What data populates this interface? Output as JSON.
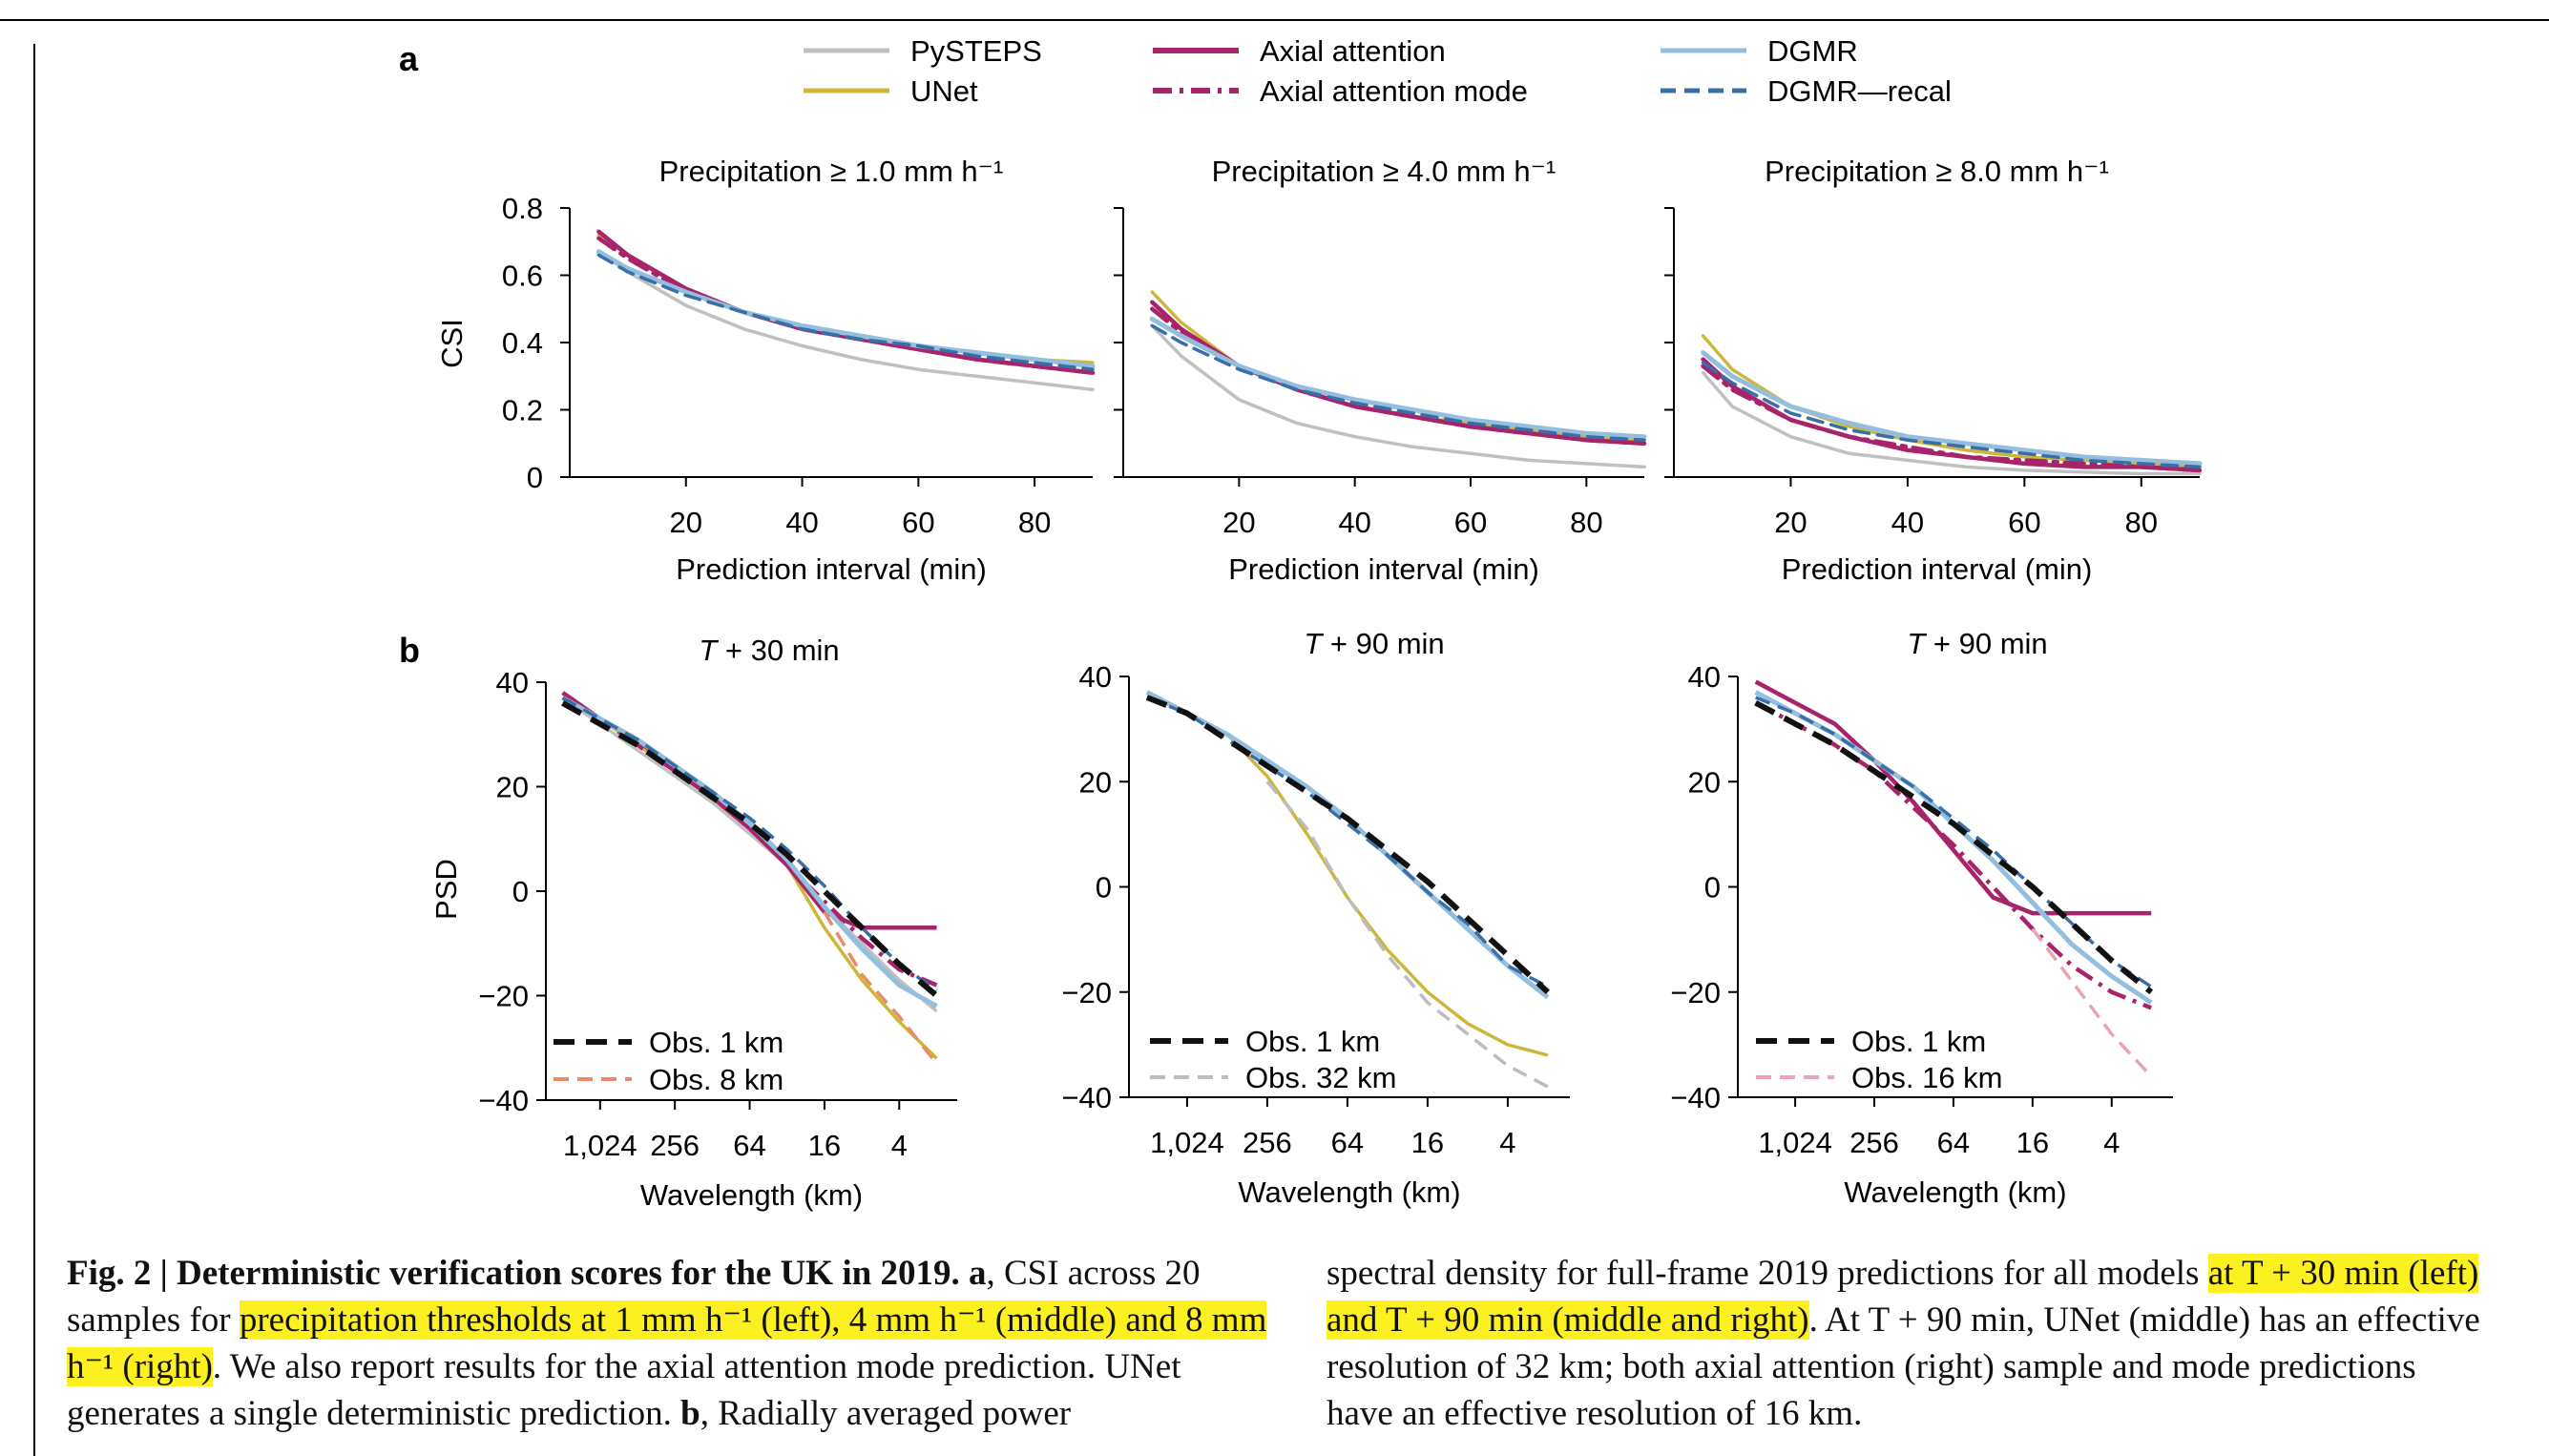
{
  "panel_a": {
    "label": "a",
    "ylabel": "CSI",
    "xlabel": "Prediction interval (min)"
  },
  "panel_b": {
    "label": "b",
    "ylabel": "PSD",
    "xlabel": "Wavelength (km)"
  },
  "legend": [
    {
      "name": "PySTEPS",
      "color": "#c0c0c0",
      "dash": ""
    },
    {
      "name": "UNet",
      "color": "#cdb63a",
      "dash": ""
    },
    {
      "name": "Axial attention",
      "color": "#a8246a",
      "dash": ""
    },
    {
      "name": "Axial attention mode",
      "color": "#a8246a",
      "dash": "dashdot"
    },
    {
      "name": "DGMR",
      "color": "#93bede",
      "dash": ""
    },
    {
      "name": "DGMR—recal",
      "color": "#3a6ea8",
      "dash": "dash"
    }
  ],
  "chart_data": [
    {
      "type": "line",
      "panel": "a",
      "title": "Precipitation ≥ 1.0 mm h⁻¹",
      "xlabel": "Prediction interval (min)",
      "ylabel": "CSI",
      "xlim": [
        0,
        90
      ],
      "ylim": [
        0,
        0.8
      ],
      "xticks": [
        "20",
        "40",
        "60",
        "80"
      ],
      "yticks": [
        "0",
        "0.2",
        "0.4",
        "0.6",
        "0.8"
      ],
      "x": [
        5,
        10,
        20,
        30,
        40,
        50,
        60,
        70,
        80,
        90
      ],
      "series": [
        {
          "name": "PySTEPS",
          "values": [
            0.67,
            0.61,
            0.51,
            0.44,
            0.39,
            0.35,
            0.32,
            0.3,
            0.28,
            0.26
          ]
        },
        {
          "name": "UNet",
          "values": [
            0.72,
            0.66,
            0.56,
            0.49,
            0.45,
            0.42,
            0.39,
            0.37,
            0.35,
            0.34
          ]
        },
        {
          "name": "Axial attention",
          "values": [
            0.73,
            0.66,
            0.56,
            0.49,
            0.44,
            0.41,
            0.38,
            0.35,
            0.33,
            0.31
          ]
        },
        {
          "name": "Axial attention mode",
          "values": [
            0.71,
            0.65,
            0.55,
            0.49,
            0.44,
            0.41,
            0.38,
            0.35,
            0.33,
            0.31
          ]
        },
        {
          "name": "DGMR",
          "values": [
            0.67,
            0.62,
            0.55,
            0.49,
            0.45,
            0.42,
            0.39,
            0.37,
            0.35,
            0.33
          ]
        },
        {
          "name": "DGMR—recal",
          "values": [
            0.66,
            0.61,
            0.54,
            0.49,
            0.44,
            0.41,
            0.39,
            0.36,
            0.34,
            0.32
          ]
        }
      ]
    },
    {
      "type": "line",
      "panel": "a",
      "title": "Precipitation ≥ 4.0 mm h⁻¹",
      "xlabel": "Prediction interval (min)",
      "ylabel": "",
      "xlim": [
        0,
        90
      ],
      "ylim": [
        0,
        0.8
      ],
      "xticks": [
        "20",
        "40",
        "60",
        "80"
      ],
      "yticks": [],
      "x": [
        5,
        10,
        20,
        30,
        40,
        50,
        60,
        70,
        80,
        90
      ],
      "series": [
        {
          "name": "PySTEPS",
          "values": [
            0.45,
            0.36,
            0.23,
            0.16,
            0.12,
            0.09,
            0.07,
            0.05,
            0.04,
            0.03
          ]
        },
        {
          "name": "UNet",
          "values": [
            0.55,
            0.46,
            0.33,
            0.26,
            0.21,
            0.18,
            0.16,
            0.14,
            0.12,
            0.11
          ]
        },
        {
          "name": "Axial attention",
          "values": [
            0.52,
            0.44,
            0.33,
            0.26,
            0.21,
            0.18,
            0.15,
            0.13,
            0.11,
            0.1
          ]
        },
        {
          "name": "Axial attention mode",
          "values": [
            0.5,
            0.43,
            0.33,
            0.26,
            0.21,
            0.18,
            0.15,
            0.13,
            0.11,
            0.1
          ]
        },
        {
          "name": "DGMR",
          "values": [
            0.47,
            0.42,
            0.33,
            0.27,
            0.23,
            0.2,
            0.17,
            0.15,
            0.13,
            0.12
          ]
        },
        {
          "name": "DGMR—recal",
          "values": [
            0.45,
            0.4,
            0.32,
            0.26,
            0.22,
            0.19,
            0.16,
            0.14,
            0.12,
            0.11
          ]
        }
      ]
    },
    {
      "type": "line",
      "panel": "a",
      "title": "Precipitation ≥ 8.0 mm h⁻¹",
      "xlabel": "Prediction interval (min)",
      "ylabel": "",
      "xlim": [
        0,
        90
      ],
      "ylim": [
        0,
        0.8
      ],
      "xticks": [
        "20",
        "40",
        "60",
        "80"
      ],
      "yticks": [],
      "x": [
        5,
        10,
        20,
        30,
        40,
        50,
        60,
        70,
        80,
        90
      ],
      "series": [
        {
          "name": "PySTEPS",
          "values": [
            0.31,
            0.21,
            0.12,
            0.07,
            0.05,
            0.03,
            0.02,
            0.015,
            0.01,
            0.01
          ]
        },
        {
          "name": "UNet",
          "values": [
            0.42,
            0.32,
            0.21,
            0.15,
            0.11,
            0.08,
            0.06,
            0.05,
            0.04,
            0.03
          ]
        },
        {
          "name": "Axial attention",
          "values": [
            0.35,
            0.27,
            0.17,
            0.12,
            0.08,
            0.06,
            0.04,
            0.03,
            0.03,
            0.02
          ]
        },
        {
          "name": "Axial attention mode",
          "values": [
            0.33,
            0.26,
            0.17,
            0.12,
            0.09,
            0.06,
            0.05,
            0.04,
            0.03,
            0.02
          ]
        },
        {
          "name": "DGMR",
          "values": [
            0.37,
            0.3,
            0.21,
            0.16,
            0.12,
            0.1,
            0.08,
            0.06,
            0.05,
            0.04
          ]
        },
        {
          "name": "DGMR—recal",
          "values": [
            0.34,
            0.28,
            0.19,
            0.14,
            0.11,
            0.09,
            0.07,
            0.05,
            0.04,
            0.03
          ]
        }
      ]
    },
    {
      "type": "line",
      "panel": "b",
      "title": "T + 30 min",
      "title_italic": "T",
      "title_rest": " + 30 min",
      "xlabel": "Wavelength (km)",
      "ylabel": "PSD",
      "ylim": [
        -40,
        40
      ],
      "xticks": [
        "1,024",
        "256",
        "64",
        "16",
        "4"
      ],
      "yticks": [
        "−40",
        "−20",
        "0",
        "20",
        "40"
      ],
      "x": [
        2048,
        1024,
        512,
        256,
        128,
        64,
        32,
        16,
        8,
        4,
        2
      ],
      "series": [
        {
          "name": "PySTEPS",
          "values": [
            37,
            32,
            27,
            22,
            17,
            11,
            5,
            -3,
            -10,
            -17,
            -23
          ]
        },
        {
          "name": "UNet",
          "values": [
            37,
            33,
            28,
            23,
            18,
            12,
            5,
            -7,
            -17,
            -25,
            -32
          ]
        },
        {
          "name": "Axial attention",
          "values": [
            38,
            33,
            29,
            23,
            18,
            12,
            5,
            -4,
            -7,
            -7,
            -7
          ]
        },
        {
          "name": "Axial attention mode",
          "values": [
            37,
            33,
            28,
            23,
            18,
            12,
            5,
            -2,
            -9,
            -15,
            -18
          ]
        },
        {
          "name": "DGMR",
          "values": [
            37,
            33,
            29,
            24,
            19,
            13,
            6,
            -3,
            -11,
            -18,
            -22
          ]
        },
        {
          "name": "DGMR—recal",
          "values": [
            37,
            33,
            29,
            24,
            19,
            14,
            8,
            1,
            -7,
            -14,
            -19
          ]
        },
        {
          "name": "Obs. 1 km",
          "values": [
            36,
            32,
            28,
            23,
            18,
            13,
            7,
            0,
            -7,
            -14,
            -20
          ]
        },
        {
          "name": "Obs. 8 km",
          "values": [
            null,
            null,
            null,
            null,
            null,
            null,
            null,
            -4,
            -16,
            -24,
            -33
          ]
        }
      ],
      "legend": [
        "Obs. 1 km",
        "Obs. 8 km"
      ]
    },
    {
      "type": "line",
      "panel": "b",
      "title": "T + 90 min",
      "title_italic": "T",
      "title_rest": " + 90 min",
      "xlabel": "Wavelength (km)",
      "ylabel": "",
      "ylim": [
        -40,
        40
      ],
      "xticks": [
        "1,024",
        "256",
        "64",
        "16",
        "4"
      ],
      "yticks": [
        "−40",
        "−20",
        "0",
        "20",
        "40"
      ],
      "x": [
        2048,
        1024,
        512,
        256,
        128,
        64,
        32,
        16,
        8,
        4,
        2
      ],
      "series": [
        {
          "name": "UNet",
          "values": [
            37,
            33,
            29,
            21,
            10,
            -2,
            -12,
            -20,
            -26,
            -30,
            -32
          ]
        },
        {
          "name": "DGMR",
          "values": [
            37,
            33,
            29,
            24,
            19,
            13,
            6,
            -1,
            -8,
            -15,
            -21
          ]
        },
        {
          "name": "DGMR—recal",
          "values": [
            36,
            33,
            28,
            23,
            18,
            12,
            6,
            -1,
            -7,
            -15,
            -19
          ]
        },
        {
          "name": "Obs. 1 km",
          "values": [
            36,
            33,
            28,
            23,
            18,
            13,
            7,
            1,
            -6,
            -13,
            -20
          ]
        },
        {
          "name": "Obs. 32 km",
          "values": [
            null,
            null,
            null,
            20,
            11,
            -2,
            -13,
            -22,
            -28,
            -34,
            -38
          ]
        }
      ],
      "legend": [
        "Obs. 1 km",
        "Obs. 32 km"
      ]
    },
    {
      "type": "line",
      "panel": "b",
      "title": "T + 90 min",
      "title_italic": "T",
      "title_rest": " + 90 min",
      "xlabel": "Wavelength (km)",
      "ylabel": "",
      "ylim": [
        -40,
        40
      ],
      "xticks": [
        "1,024",
        "256",
        "64",
        "16",
        "4"
      ],
      "yticks": [
        "−40",
        "−20",
        "0",
        "20",
        "40"
      ],
      "x": [
        2048,
        1024,
        512,
        256,
        128,
        64,
        32,
        16,
        8,
        4,
        2
      ],
      "series": [
        {
          "name": "Axial attention",
          "values": [
            39,
            35,
            31,
            24,
            16,
            7,
            -2,
            -5,
            -5,
            -5,
            -5
          ]
        },
        {
          "name": "Axial attention mode",
          "values": [
            35,
            31,
            27,
            22,
            15,
            8,
            0,
            -8,
            -15,
            -20,
            -23
          ]
        },
        {
          "name": "DGMR",
          "values": [
            37,
            33,
            29,
            24,
            19,
            12,
            5,
            -3,
            -11,
            -17,
            -22
          ]
        },
        {
          "name": "DGMR—recal",
          "values": [
            36,
            33,
            29,
            24,
            19,
            13,
            7,
            0,
            -7,
            -14,
            -19
          ]
        },
        {
          "name": "Obs. 1 km",
          "values": [
            35,
            31,
            27,
            22,
            17,
            12,
            6,
            0,
            -7,
            -14,
            -20
          ]
        },
        {
          "name": "Obs. 16 km",
          "values": [
            null,
            null,
            null,
            null,
            null,
            null,
            null,
            -8,
            -18,
            -28,
            -36
          ]
        }
      ],
      "legend": [
        "Obs. 1 km",
        "Obs. 16 km"
      ]
    }
  ],
  "caption": {
    "fig_label": "Fig. 2 | ",
    "title": "Deterministic verification scores for the UK in 2019.",
    "a_label": "a",
    "left_p1": ", CSI across 20 samples for ",
    "left_hl1": "precipitation thresholds at 1 mm h⁻¹ (left), 4 mm h⁻¹ (middle) and 8 mm h⁻¹ (right)",
    "left_p2": ". We also report results for the axial attention mode prediction. UNet generates a single deterministic prediction. ",
    "b_label": "b",
    "left_p3": ", Radially averaged power",
    "right_p1": "spectral density for full-frame 2019 predictions for all models ",
    "right_hl1": "at T + 30 min (left) and T + 90 min (middle and right)",
    "right_p2": ". At T + 90 min, UNet (middle) has an effective resolution of 32 km; both axial attention (right) sample and mode predictions have an effective resolution of 16 km."
  }
}
